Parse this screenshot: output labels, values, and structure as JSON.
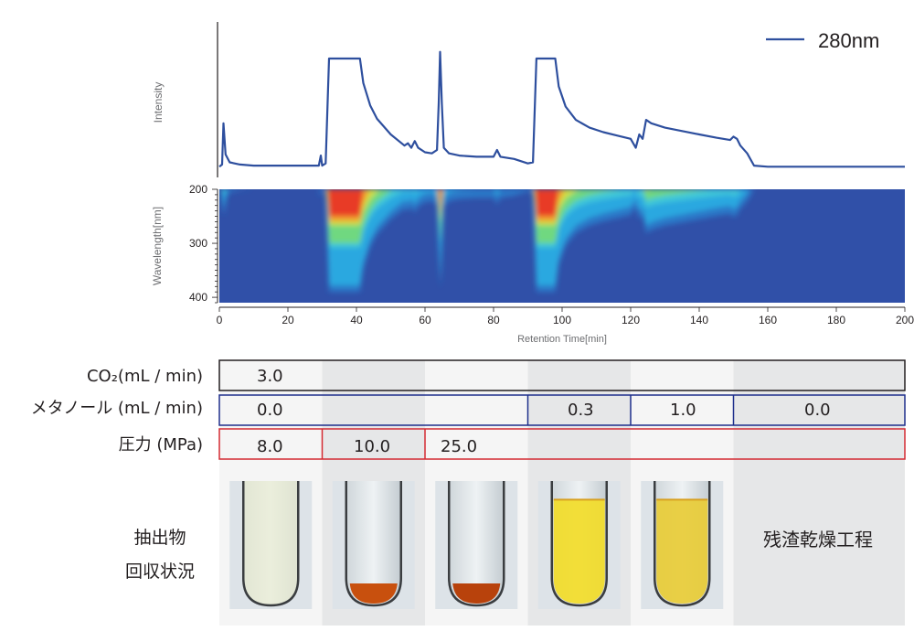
{
  "chart_data": {
    "type": "line",
    "series": [
      {
        "name": "280nm",
        "color": "#2e4f9e",
        "points": [
          [
            0,
            0.03
          ],
          [
            0.8,
            0.05
          ],
          [
            1.2,
            0.42
          ],
          [
            1.8,
            0.14
          ],
          [
            3,
            0.07
          ],
          [
            6,
            0.05
          ],
          [
            10,
            0.04
          ],
          [
            20,
            0.04
          ],
          [
            29,
            0.04
          ],
          [
            29.6,
            0.13
          ],
          [
            30,
            0.04
          ],
          [
            31,
            0.06
          ],
          [
            32,
            1.0
          ],
          [
            41,
            1.0
          ],
          [
            42,
            0.78
          ],
          [
            44,
            0.58
          ],
          [
            46,
            0.46
          ],
          [
            50,
            0.32
          ],
          [
            54,
            0.22
          ],
          [
            55,
            0.24
          ],
          [
            56,
            0.2
          ],
          [
            57,
            0.26
          ],
          [
            58,
            0.2
          ],
          [
            60,
            0.16
          ],
          [
            62,
            0.15
          ],
          [
            63.5,
            0.18
          ],
          [
            64,
            0.6
          ],
          [
            64.4,
            1.06
          ],
          [
            64.9,
            0.6
          ],
          [
            65.5,
            0.2
          ],
          [
            67,
            0.15
          ],
          [
            70,
            0.13
          ],
          [
            75,
            0.12
          ],
          [
            80,
            0.12
          ],
          [
            81,
            0.18
          ],
          [
            82,
            0.12
          ],
          [
            86,
            0.1
          ],
          [
            90,
            0.06
          ],
          [
            91.5,
            0.07
          ],
          [
            92.5,
            1.0
          ],
          [
            98,
            1.0
          ],
          [
            99,
            0.75
          ],
          [
            101,
            0.57
          ],
          [
            104,
            0.45
          ],
          [
            108,
            0.38
          ],
          [
            112,
            0.34
          ],
          [
            116,
            0.31
          ],
          [
            120,
            0.28
          ],
          [
            121.5,
            0.2
          ],
          [
            122.5,
            0.32
          ],
          [
            123.5,
            0.28
          ],
          [
            124.5,
            0.45
          ],
          [
            126,
            0.42
          ],
          [
            130,
            0.38
          ],
          [
            135,
            0.35
          ],
          [
            140,
            0.32
          ],
          [
            145,
            0.29
          ],
          [
            149,
            0.27
          ],
          [
            150,
            0.3
          ],
          [
            151,
            0.28
          ],
          [
            152,
            0.22
          ],
          [
            154,
            0.15
          ],
          [
            156,
            0.04
          ],
          [
            160,
            0.03
          ],
          [
            170,
            0.03
          ],
          [
            180,
            0.03
          ],
          [
            200,
            0.03
          ]
        ]
      }
    ],
    "title": "",
    "xlabel": "Retention Time[min]",
    "ylabel": "Intensity",
    "xlim": [
      0,
      200
    ],
    "x_ticks": [
      "0",
      "20",
      "40",
      "60",
      "80",
      "100",
      "120",
      "140",
      "160",
      "180",
      "200"
    ],
    "legend": "top-right",
    "grid": false,
    "heatmap": {
      "ylabel": "Wavelength[nm]",
      "ylim": [
        200,
        410
      ],
      "y_ticks": [
        "200",
        "300",
        "400"
      ],
      "colormap": [
        "#3050a8",
        "#2a78c8",
        "#2aa8e0",
        "#40c8d8",
        "#70d880",
        "#d0e040",
        "#f0a030",
        "#e83a28"
      ]
    }
  },
  "conditions": {
    "rows": [
      {
        "label": "CO₂(mL / min)",
        "border_color": "#231f20",
        "segments": [
          {
            "start": 0,
            "end": 200,
            "value": "3.0"
          }
        ]
      },
      {
        "label": "メタノール (mL / min)",
        "border_color": "#1e2f8c",
        "segments": [
          {
            "start": 0,
            "end": 90,
            "value": "0.0"
          },
          {
            "start": 90,
            "end": 120,
            "value": "0.3"
          },
          {
            "start": 120,
            "end": 150,
            "value": "1.0"
          },
          {
            "start": 150,
            "end": 200,
            "value": "0.0"
          }
        ]
      },
      {
        "label": "圧力 (MPa)",
        "border_color": "#d42a32",
        "segments": [
          {
            "start": 0,
            "end": 30,
            "value": "8.0"
          },
          {
            "start": 30,
            "end": 60,
            "value": "10.0"
          },
          {
            "start": 60,
            "end": 200,
            "value": "25.0"
          }
        ]
      }
    ]
  },
  "extract_label_lines": [
    "抽出物",
    "回収状況"
  ],
  "residue_label": "残渣乾燥工程",
  "tubes": [
    {
      "name": "tube-1",
      "liquid_color": "#e9ecd2",
      "fill_fraction": 0.0,
      "sediment_color": ""
    },
    {
      "name": "tube-2",
      "liquid_color": "",
      "fill_fraction": 0.0,
      "sediment_color": "#c8500e"
    },
    {
      "name": "tube-3",
      "liquid_color": "",
      "fill_fraction": 0.0,
      "sediment_color": "#b8420c"
    },
    {
      "name": "tube-4",
      "liquid_color": "#f2dc28",
      "fill_fraction": 0.85,
      "sediment_color": ""
    },
    {
      "name": "tube-5",
      "liquid_color": "#e8cc36",
      "fill_fraction": 0.85,
      "sediment_color": ""
    }
  ]
}
